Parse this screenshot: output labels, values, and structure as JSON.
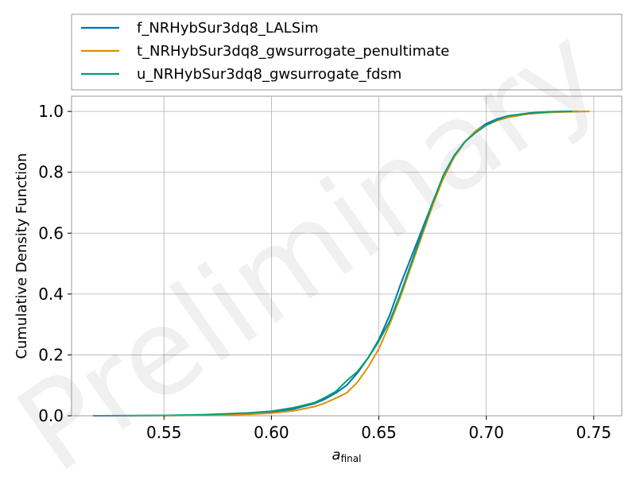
{
  "chart_data": {
    "type": "line",
    "watermark": "Preliminary",
    "xlabel_main": "a",
    "xlabel_sub": "final",
    "ylabel": "Cumulative Density Function",
    "xlim": [
      0.507,
      0.763
    ],
    "ylim": [
      0.0,
      1.05
    ],
    "xticks": [
      0.55,
      0.6,
      0.65,
      0.7,
      0.75
    ],
    "xtick_labels": [
      "0.55",
      "0.60",
      "0.65",
      "0.70",
      "0.75"
    ],
    "yticks": [
      0.0,
      0.2,
      0.4,
      0.6,
      0.8,
      1.0
    ],
    "ytick_labels": [
      "0.0",
      "0.2",
      "0.4",
      "0.6",
      "0.8",
      "1.0"
    ],
    "grid": true,
    "legend_position": "above plot",
    "series": [
      {
        "name": "f_NRHybSur3dq8_LALSim",
        "color": "#0173b2",
        "x": [
          0.517,
          0.55,
          0.57,
          0.59,
          0.6,
          0.61,
          0.62,
          0.625,
          0.63,
          0.635,
          0.64,
          0.645,
          0.65,
          0.655,
          0.66,
          0.665,
          0.67,
          0.675,
          0.68,
          0.685,
          0.69,
          0.695,
          0.7,
          0.705,
          0.71,
          0.72,
          0.73,
          0.743
        ],
        "y": [
          0.0,
          0.001,
          0.003,
          0.008,
          0.012,
          0.022,
          0.04,
          0.055,
          0.075,
          0.1,
          0.14,
          0.19,
          0.25,
          0.33,
          0.43,
          0.52,
          0.61,
          0.7,
          0.78,
          0.85,
          0.9,
          0.935,
          0.96,
          0.975,
          0.985,
          0.995,
          0.999,
          1.0
        ]
      },
      {
        "name": "t_NRHybSur3dq8_gwsurrogate_penultimate",
        "color": "#de8f05",
        "x": [
          0.55,
          0.57,
          0.59,
          0.6,
          0.61,
          0.62,
          0.625,
          0.63,
          0.635,
          0.64,
          0.645,
          0.65,
          0.655,
          0.66,
          0.665,
          0.67,
          0.675,
          0.68,
          0.685,
          0.69,
          0.695,
          0.7,
          0.705,
          0.71,
          0.72,
          0.73,
          0.74,
          0.748
        ],
        "y": [
          0.0,
          0.002,
          0.005,
          0.009,
          0.016,
          0.03,
          0.042,
          0.058,
          0.075,
          0.11,
          0.16,
          0.22,
          0.3,
          0.39,
          0.49,
          0.59,
          0.69,
          0.78,
          0.85,
          0.9,
          0.935,
          0.955,
          0.97,
          0.98,
          0.992,
          0.997,
          0.999,
          1.0
        ]
      },
      {
        "name": "u_NRHybSur3dq8_gwsurrogate_fdsm",
        "color": "#029e73",
        "x": [
          0.53,
          0.55,
          0.57,
          0.59,
          0.6,
          0.61,
          0.62,
          0.625,
          0.63,
          0.635,
          0.64,
          0.645,
          0.65,
          0.655,
          0.66,
          0.665,
          0.67,
          0.675,
          0.68,
          0.685,
          0.69,
          0.695,
          0.7,
          0.705,
          0.71,
          0.72,
          0.73,
          0.74
        ],
        "y": [
          0.0,
          0.001,
          0.004,
          0.01,
          0.015,
          0.026,
          0.043,
          0.06,
          0.08,
          0.115,
          0.145,
          0.19,
          0.245,
          0.31,
          0.4,
          0.5,
          0.6,
          0.7,
          0.79,
          0.855,
          0.9,
          0.93,
          0.955,
          0.972,
          0.985,
          0.994,
          0.999,
          1.0
        ]
      }
    ]
  }
}
